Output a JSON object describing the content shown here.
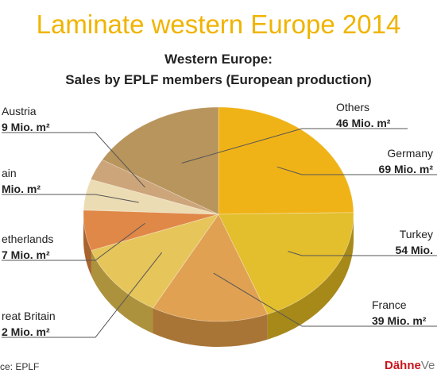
{
  "title": "Laminate western Europe 2014",
  "subtitle": {
    "line1": "Western Europe:",
    "line2": "Sales by EPLF members (European production)"
  },
  "source": "ce: EPLF",
  "brand": {
    "part1": "Dähne",
    "part2": "Ve"
  },
  "colors": {
    "title": "#f0b400",
    "brand": "#c8161d"
  },
  "chart_data": {
    "type": "pie",
    "title": "Laminate western Europe 2014",
    "subtitle": "Western Europe: Sales by EPLF members (European production)",
    "unit": "Mio. m²",
    "slices": [
      {
        "name": "Germany",
        "label_value": "69 Mio. m²",
        "value": 69,
        "color": "#f0b317",
        "side_color": "#b9860b"
      },
      {
        "name": "Turkey",
        "label_value": "54 Mio.",
        "value": 54,
        "color": "#e3be2d",
        "side_color": "#a7891a"
      },
      {
        "name": "France",
        "label_value": "39 Mio. m²",
        "value": 39,
        "color": "#e0a152",
        "side_color": "#a97536"
      },
      {
        "name": "reat Britain",
        "label_value": "2 Mio. m²",
        "value": 32,
        "color": "#e6c55a",
        "side_color": "#ad923d"
      },
      {
        "name": "etherlands",
        "label_value": "7 Mio. m²",
        "value": 17,
        "color": "#e08848",
        "side_color": "#a9632e"
      },
      {
        "name": "ain",
        "label_value": "Mio. m²",
        "value": 13,
        "color": "#ecdcb3",
        "side_color": "#b5a47c"
      },
      {
        "name": "Austria",
        "label_value": "9 Mio. m²",
        "value": 9,
        "color": "#cda57a",
        "side_color": "#987553"
      },
      {
        "name": "Others",
        "label_value": "46 Mio. m²",
        "value": 46,
        "color": "#b8955c",
        "side_color": "#86683c"
      }
    ]
  }
}
